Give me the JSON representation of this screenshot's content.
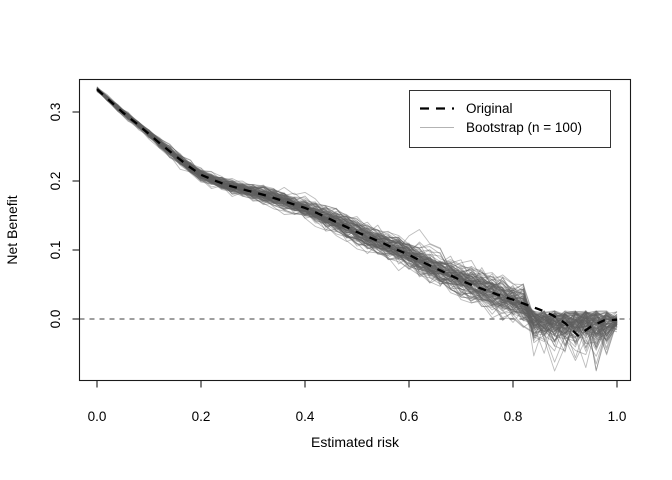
{
  "figure": {
    "background": "#ffffff"
  },
  "chart_data": {
    "type": "line",
    "title": "",
    "xlabel": "Estimated risk",
    "ylabel": "Net Benefit",
    "x_ticks": [
      0,
      0.2,
      0.4,
      0.6,
      0.8,
      1.0
    ],
    "x_tick_labels": [
      "0.0",
      "0.2",
      "0.4",
      "0.6",
      "0.8",
      "1.0"
    ],
    "y_ticks": [
      0,
      0.1,
      0.2,
      0.3
    ],
    "y_tick_labels": [
      "0.0",
      "0.1",
      "0.2",
      "0.3"
    ],
    "xlim": [
      -0.035,
      1.027
    ],
    "ylim": [
      -0.089,
      0.347
    ],
    "grid": false,
    "frame_color": "#1a1a1a",
    "legend": {
      "position": "top-right",
      "border_color": "#333333",
      "items": [
        {
          "label": "Original",
          "line": "dashed",
          "color": "#000000",
          "width": 2.3
        },
        {
          "label": "Bootstrap (n = 100)",
          "line": "solid",
          "color": "#b3b3b3",
          "width": 1.1
        }
      ]
    },
    "reference_line": {
      "y": 0,
      "style": "dashed",
      "color": "#666666",
      "width": 1.2
    },
    "series": [
      {
        "name": "Original",
        "style": "dashed",
        "color": "#000000",
        "width": 2.3,
        "x": [
          0.0,
          0.025,
          0.05,
          0.075,
          0.1,
          0.125,
          0.15,
          0.175,
          0.2,
          0.225,
          0.25,
          0.275,
          0.3,
          0.325,
          0.35,
          0.375,
          0.4,
          0.425,
          0.45,
          0.475,
          0.5,
          0.525,
          0.55,
          0.575,
          0.6,
          0.625,
          0.65,
          0.675,
          0.7,
          0.725,
          0.75,
          0.775,
          0.8,
          0.825,
          0.85,
          0.875,
          0.9,
          0.925,
          0.95,
          0.975,
          1.0
        ],
        "y": [
          0.333,
          0.316,
          0.299,
          0.284,
          0.268,
          0.252,
          0.237,
          0.222,
          0.209,
          0.201,
          0.194,
          0.189,
          0.184,
          0.179,
          0.173,
          0.167,
          0.161,
          0.153,
          0.144,
          0.135,
          0.126,
          0.118,
          0.11,
          0.101,
          0.093,
          0.083,
          0.074,
          0.065,
          0.056,
          0.048,
          0.041,
          0.034,
          0.028,
          0.021,
          0.014,
          0.006,
          -0.006,
          -0.024,
          -0.011,
          -0.002,
          -0.001
        ]
      }
    ],
    "bootstrap": {
      "n": 100,
      "seed": 42,
      "color": "#5f5f5f",
      "opacity": 0.42,
      "stroke_width": 0.9,
      "x_step": 0.02,
      "noise_base": 0.0015,
      "noise_slope": 0.0105,
      "ar": 0.55,
      "bias_sd": 0.007,
      "tail_start": 0.84,
      "tail_sigma": 0.024,
      "tail_cap": 0.012,
      "tail_center_start": 0.016,
      "depth_floor": -0.078,
      "end_mean": -0.004,
      "end_sd": 0.005
    }
  }
}
